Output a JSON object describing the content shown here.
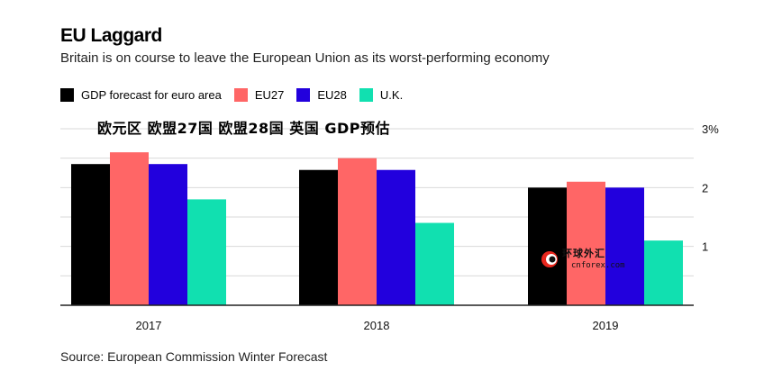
{
  "title": "EU Laggard",
  "subtitle": "Britain is on course to leave the European Union as its worst-performing economy",
  "overlay_text": "欧元区 欧盟27国 欧盟28国 英国 GDP预估",
  "source": "Source: European Commission Winter Forecast",
  "watermark": {
    "cn": "环球外汇",
    "en": "cnforex.com"
  },
  "legend": [
    {
      "label": "GDP forecast for euro area",
      "color": "#000000"
    },
    {
      "label": "EU27",
      "color": "#ff6666"
    },
    {
      "label": "EU28",
      "color": "#2200dd"
    },
    {
      "label": "U.K.",
      "color": "#11e0b0"
    }
  ],
  "chart_data": {
    "type": "bar",
    "categories": [
      "2017",
      "2018",
      "2019"
    ],
    "series": [
      {
        "name": "GDP forecast for euro area",
        "color": "#000000",
        "values": [
          2.4,
          2.3,
          2.0
        ]
      },
      {
        "name": "EU27",
        "color": "#ff6666",
        "values": [
          2.6,
          2.5,
          2.1
        ]
      },
      {
        "name": "EU28",
        "color": "#2200dd",
        "values": [
          2.4,
          2.3,
          2.0
        ]
      },
      {
        "name": "U.K.",
        "color": "#11e0b0",
        "values": [
          1.8,
          1.4,
          1.1
        ]
      }
    ],
    "yticks": [
      {
        "value": 3,
        "label": "3%"
      },
      {
        "value": 2,
        "label": "2"
      },
      {
        "value": 1,
        "label": "1"
      }
    ],
    "ylim": [
      0,
      3
    ],
    "grid": true,
    "axis_position": "right",
    "legend_position": "top-left"
  }
}
